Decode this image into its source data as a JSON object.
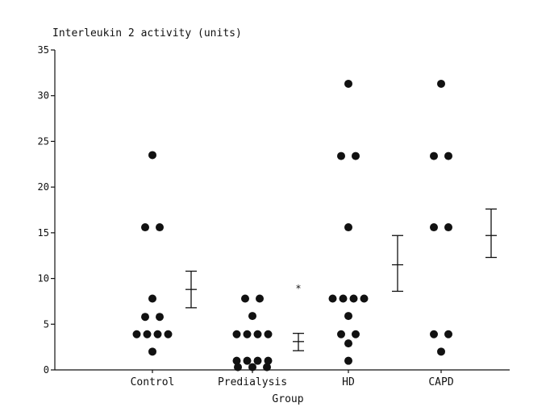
{
  "chart_data": {
    "type": "scatter",
    "ylabel": "Interleukin 2 activity (units)",
    "xlabel": "Group",
    "ylim": [
      0,
      35
    ],
    "yticks": [
      "0",
      "5",
      "10",
      "15",
      "20",
      "25",
      "30",
      "35"
    ],
    "grid": false,
    "categories": [
      "Control",
      "Predialysis",
      "HD",
      "CAPD"
    ],
    "points": [
      {
        "group": "Control",
        "values": [
          23.5,
          15.6,
          15.6,
          7.8,
          5.8,
          5.8,
          3.9,
          3.9,
          3.9,
          3.9,
          2.0
        ]
      },
      {
        "group": "Predialysis",
        "values": [
          7.8,
          7.8,
          5.9,
          3.9,
          3.9,
          3.9,
          3.9,
          1.0,
          1.0,
          1.0,
          1.0,
          0.3,
          0.3,
          0.3
        ]
      },
      {
        "group": "HD",
        "values": [
          31.3,
          23.4,
          23.4,
          15.6,
          7.8,
          7.8,
          7.8,
          7.8,
          5.9,
          3.9,
          3.9,
          2.9,
          1.0
        ]
      },
      {
        "group": "CAPD",
        "values": [
          31.3,
          23.4,
          23.4,
          15.6,
          15.6,
          3.9,
          3.9,
          2.0
        ]
      }
    ],
    "error_bars": [
      {
        "group": "Control",
        "mean": 8.8,
        "low": 6.8,
        "high": 10.8
      },
      {
        "group": "Predialysis",
        "mean": 3.1,
        "low": 2.1,
        "high": 4.0
      },
      {
        "group": "HD",
        "mean": 11.5,
        "low": 8.6,
        "high": 14.7
      },
      {
        "group": "CAPD",
        "mean": 14.7,
        "low": 12.3,
        "high": 17.6
      }
    ],
    "annotations": [
      {
        "text": "*",
        "group": "Predialysis",
        "y": 9.0
      }
    ]
  }
}
